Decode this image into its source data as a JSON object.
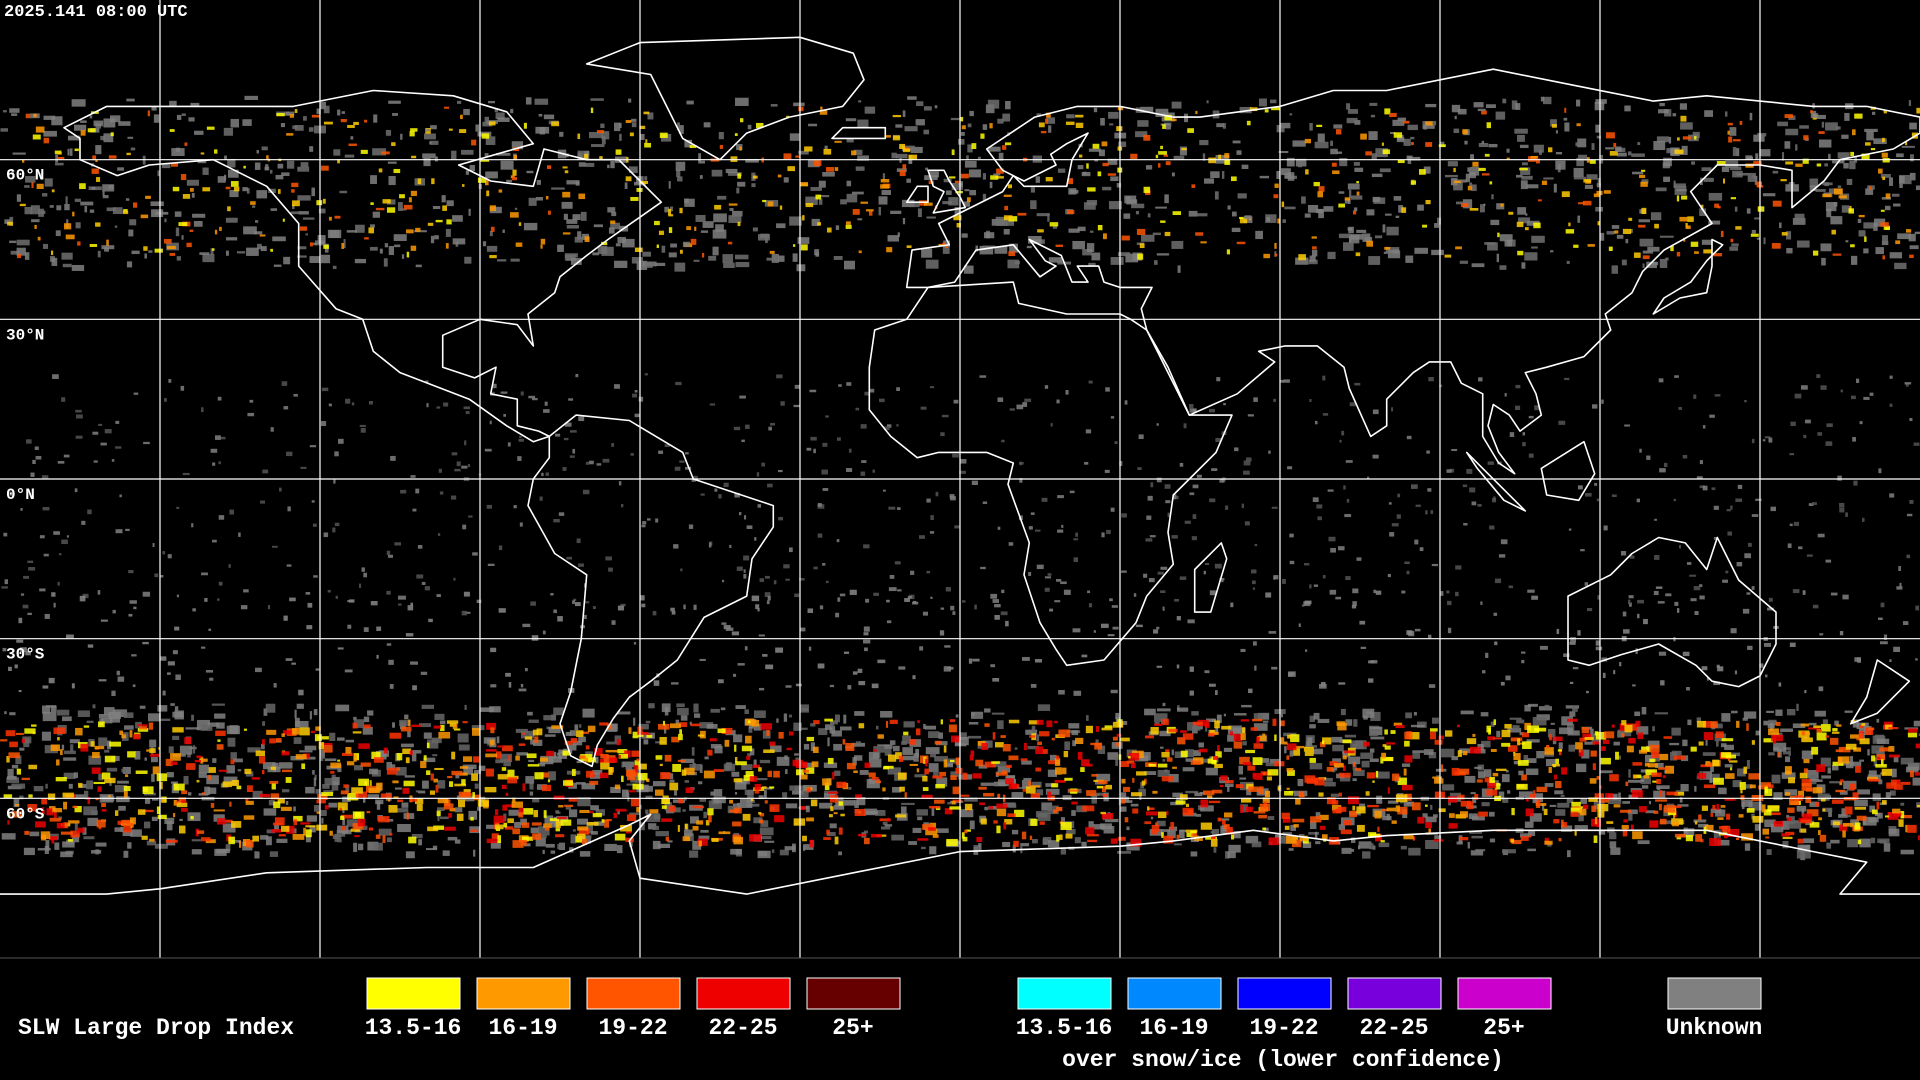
{
  "timestamp": "2025.141 08:00 UTC",
  "latitude_labels": [
    "60°N",
    "30°N",
    "0°N",
    "30°S",
    "60°S"
  ],
  "legend": {
    "title": "SLW Large Drop Index",
    "items": [
      {
        "label": "13.5-16",
        "color": "#ffff00"
      },
      {
        "label": "16-19",
        "color": "#ff9900"
      },
      {
        "label": "19-22",
        "color": "#ff5500"
      },
      {
        "label": "22-25",
        "color": "#ee0000"
      },
      {
        "label": "25+",
        "color": "#660000"
      }
    ],
    "snow_items": [
      {
        "label": "13.5-16",
        "color": "#00ffff"
      },
      {
        "label": "16-19",
        "color": "#0088ff"
      },
      {
        "label": "19-22",
        "color": "#0000ff"
      },
      {
        "label": "22-25",
        "color": "#7700dd"
      },
      {
        "label": "25+",
        "color": "#cc00cc"
      }
    ],
    "snow_caption": "over snow/ice (lower confidence)",
    "unknown": {
      "label": "Unknown",
      "color": "#808080"
    }
  }
}
